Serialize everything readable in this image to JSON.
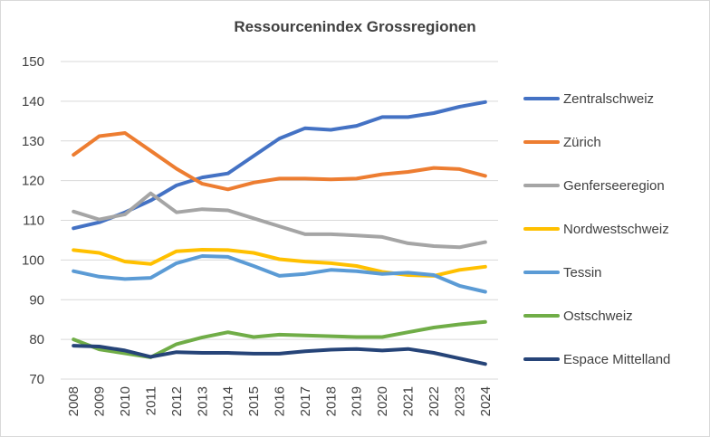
{
  "chart_data": {
    "type": "line",
    "title": "Ressourcenindex Grossregionen",
    "xlabel": "",
    "ylabel": "",
    "x": [
      "2008",
      "2009",
      "2010",
      "2011",
      "2012",
      "2013",
      "2014",
      "2015",
      "2016",
      "2017",
      "2018",
      "2019",
      "2020",
      "2021",
      "2022",
      "2023",
      "2024"
    ],
    "ylim": [
      70,
      150
    ],
    "yticks": [
      70,
      80,
      90,
      100,
      110,
      120,
      130,
      140,
      150
    ],
    "grid": true,
    "legend_position": "right",
    "series": [
      {
        "name": "Zentralschweiz",
        "color": "#4472c4",
        "values": [
          108.0,
          109.5,
          112.0,
          115.0,
          118.8,
          120.8,
          121.8,
          126.2,
          130.6,
          133.2,
          132.8,
          133.8,
          136.0,
          136.0,
          137.0,
          138.6,
          139.8
        ]
      },
      {
        "name": "Zürich",
        "color": "#ed7d31",
        "values": [
          126.5,
          131.2,
          132.0,
          127.5,
          123.0,
          119.2,
          117.8,
          119.5,
          120.5,
          120.5,
          120.3,
          120.5,
          121.6,
          122.2,
          123.2,
          122.9,
          121.2
        ]
      },
      {
        "name": "Genferseeregion",
        "color": "#a5a5a5",
        "values": [
          112.2,
          110.2,
          111.5,
          116.8,
          112.0,
          112.8,
          112.5,
          110.5,
          108.5,
          106.5,
          106.5,
          106.2,
          105.8,
          104.2,
          103.5,
          103.2,
          104.5
        ]
      },
      {
        "name": "Nordwestschweiz",
        "color": "#ffc000",
        "values": [
          102.5,
          101.8,
          99.6,
          99.0,
          102.2,
          102.6,
          102.5,
          101.8,
          100.2,
          99.6,
          99.2,
          98.5,
          97.0,
          96.2,
          96.0,
          97.5,
          98.3
        ]
      },
      {
        "name": "Tessin",
        "color": "#5b9bd5",
        "values": [
          97.2,
          95.8,
          95.2,
          95.5,
          99.2,
          101.0,
          100.8,
          98.5,
          96.0,
          96.5,
          97.5,
          97.2,
          96.5,
          96.8,
          96.2,
          93.5,
          92.0
        ]
      },
      {
        "name": "Ostschweiz",
        "color": "#70ad47",
        "values": [
          80.0,
          77.5,
          76.5,
          75.5,
          78.8,
          80.5,
          81.8,
          80.6,
          81.2,
          81.0,
          80.8,
          80.6,
          80.6,
          81.8,
          83.0,
          83.8,
          84.4
        ]
      },
      {
        "name": "Espace Mittelland",
        "color": "#264478",
        "values": [
          78.4,
          78.2,
          77.2,
          75.6,
          76.8,
          76.6,
          76.6,
          76.4,
          76.4,
          77.0,
          77.4,
          77.6,
          77.2,
          77.6,
          76.6,
          75.2,
          73.8
        ]
      }
    ]
  }
}
